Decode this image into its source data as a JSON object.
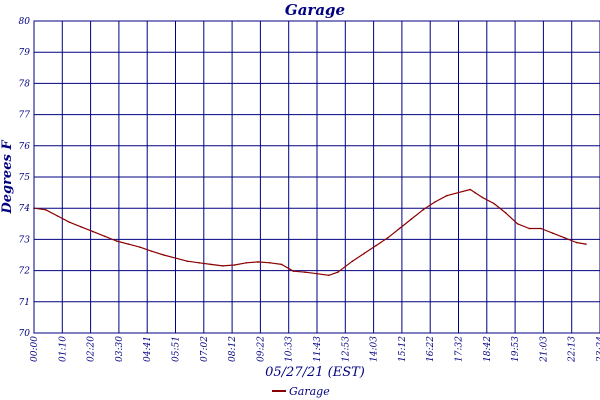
{
  "chart_data": {
    "type": "line",
    "title": "Garage",
    "xlabel": "05/27/21 (EST)",
    "ylabel": "Degrees F",
    "ylim": [
      70,
      80
    ],
    "yticks": [
      70,
      71,
      72,
      73,
      74,
      75,
      76,
      77,
      78,
      79,
      80
    ],
    "xticks": [
      "00:00",
      "01:10",
      "02:20",
      "03:30",
      "04:41",
      "05:51",
      "07:02",
      "08:12",
      "09:22",
      "10:33",
      "11:43",
      "12:53",
      "14:03",
      "15:12",
      "16:22",
      "17:32",
      "18:42",
      "19:53",
      "21:03",
      "22:13",
      "23:24"
    ],
    "grid": true,
    "legend_position": "bottom-center",
    "series": [
      {
        "name": "Garage",
        "color": "#8b0000",
        "x": [
          "00:00",
          "00:30",
          "01:00",
          "01:30",
          "02:00",
          "02:30",
          "03:00",
          "03:30",
          "04:00",
          "04:30",
          "05:00",
          "05:30",
          "06:00",
          "06:30",
          "07:00",
          "07:30",
          "08:00",
          "08:30",
          "09:00",
          "09:30",
          "10:00",
          "10:30",
          "11:00",
          "11:30",
          "12:00",
          "12:30",
          "12:53",
          "13:30",
          "14:00",
          "14:30",
          "15:00",
          "15:30",
          "16:00",
          "16:30",
          "17:00",
          "17:30",
          "18:00",
          "18:30",
          "18:42",
          "19:00",
          "19:30",
          "20:00",
          "20:30",
          "21:00",
          "21:30",
          "22:00",
          "22:30",
          "23:00",
          "23:24"
        ],
        "values": [
          74.0,
          73.95,
          73.75,
          73.55,
          73.4,
          73.25,
          73.1,
          72.95,
          72.85,
          72.75,
          72.62,
          72.5,
          72.4,
          72.3,
          72.25,
          72.2,
          72.15,
          72.18,
          72.25,
          72.28,
          72.25,
          72.2,
          71.98,
          71.95,
          71.9,
          71.85,
          71.95,
          72.3,
          72.55,
          72.8,
          73.05,
          73.35,
          73.65,
          73.95,
          74.2,
          74.4,
          74.5,
          74.6,
          74.5,
          74.35,
          74.15,
          73.85,
          73.5,
          73.35,
          73.35,
          73.2,
          73.05,
          72.9,
          72.85
        ]
      }
    ]
  }
}
